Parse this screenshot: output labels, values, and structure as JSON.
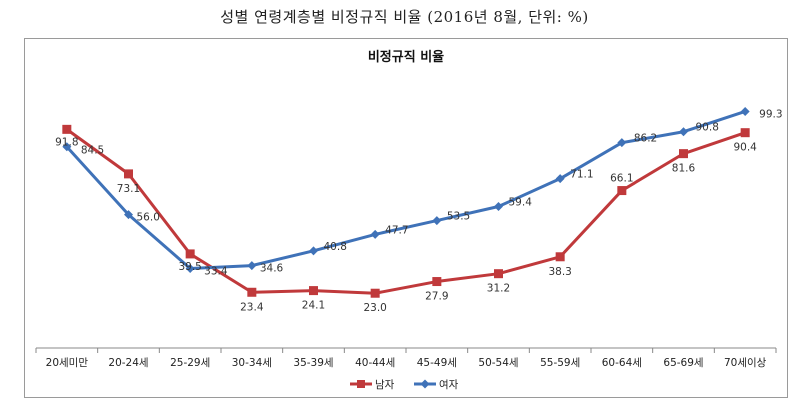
{
  "page": {
    "title": "성별 연령계층별 비정규직 비율 (2016년 8월, 단위: %)"
  },
  "colors": {
    "male": "#c0393b",
    "female": "#3f72b8",
    "axis": "#888888"
  },
  "chart_data": {
    "type": "line",
    "title": "비정규직 비율",
    "categories": [
      "20세미만",
      "20-24세",
      "25-29세",
      "30-34세",
      "35-39세",
      "40-44세",
      "45-49세",
      "50-54세",
      "55-59세",
      "60-64세",
      "65-69세",
      "70세이상"
    ],
    "series": [
      {
        "name": "남자",
        "values": [
          91.8,
          73.1,
          39.5,
          23.4,
          24.1,
          23.0,
          27.9,
          31.2,
          38.3,
          66.1,
          81.6,
          90.4
        ]
      },
      {
        "name": "여자",
        "values": [
          84.5,
          56.0,
          33.4,
          34.6,
          40.8,
          47.7,
          53.5,
          59.4,
          71.1,
          86.2,
          90.8,
          99.3
        ]
      }
    ],
    "ylim": [
      0,
      110
    ],
    "grid": false,
    "legend_position": "bottom"
  }
}
